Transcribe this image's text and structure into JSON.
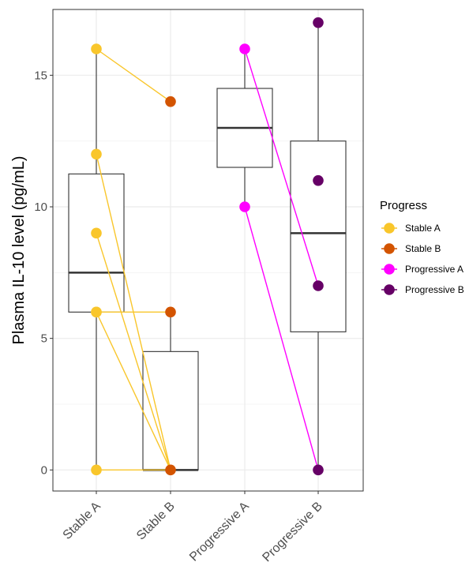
{
  "chart_data": {
    "type": "boxplot",
    "title": "",
    "xlabel": "",
    "ylabel": "Plasma IL-10 level (pg/mL)",
    "ylim": [
      -0.8,
      17.5
    ],
    "yticks": [
      0,
      5,
      10,
      15
    ],
    "grid": true,
    "legend_title": "Progress",
    "legend_position": "right",
    "categories": [
      "Stable A",
      "Stable B",
      "Progressive A",
      "Progressive B"
    ],
    "colors": {
      "Stable A": "#F9C62B",
      "Stable B": "#D35400",
      "Progressive A": "#FF00FF",
      "Progressive B": "#660066"
    },
    "boxes": [
      {
        "category": "Stable A",
        "min": 0,
        "q1": 6,
        "median": 7.5,
        "q3": 11.25,
        "max": 16
      },
      {
        "category": "Stable B",
        "min": 0,
        "q1": 0,
        "median": 0,
        "q3": 4.5,
        "max": 6
      },
      {
        "category": "Progressive A",
        "min": 10,
        "q1": 11.5,
        "median": 13,
        "q3": 14.5,
        "max": 16
      },
      {
        "category": "Progressive B",
        "min": 0,
        "q1": 5.25,
        "median": 9,
        "q3": 12.5,
        "max": 17
      }
    ],
    "points": [
      {
        "category": "Stable A",
        "y": 16
      },
      {
        "category": "Stable A",
        "y": 12
      },
      {
        "category": "Stable A",
        "y": 9
      },
      {
        "category": "Stable A",
        "y": 6
      },
      {
        "category": "Stable A",
        "y": 6
      },
      {
        "category": "Stable A",
        "y": 0
      },
      {
        "category": "Stable B",
        "y": 14
      },
      {
        "category": "Stable B",
        "y": 6
      },
      {
        "category": "Stable B",
        "y": 0
      },
      {
        "category": "Progressive A",
        "y": 16
      },
      {
        "category": "Progressive A",
        "y": 10
      },
      {
        "category": "Progressive B",
        "y": 17
      },
      {
        "category": "Progressive B",
        "y": 11
      },
      {
        "category": "Progressive B",
        "y": 7
      },
      {
        "category": "Progressive B",
        "y": 0
      }
    ],
    "pairs": [
      {
        "from": "Stable A",
        "to": "Stable B",
        "y1": 16,
        "y2": 14,
        "color": "#F9C62B"
      },
      {
        "from": "Stable A",
        "to": "Stable B",
        "y1": 12,
        "y2": 0,
        "color": "#F9C62B"
      },
      {
        "from": "Stable A",
        "to": "Stable B",
        "y1": 9,
        "y2": 0,
        "color": "#F9C62B"
      },
      {
        "from": "Stable A",
        "to": "Stable B",
        "y1": 6,
        "y2": 6,
        "color": "#F9C62B"
      },
      {
        "from": "Stable A",
        "to": "Stable B",
        "y1": 6,
        "y2": 0,
        "color": "#F9C62B"
      },
      {
        "from": "Stable A",
        "to": "Stable B",
        "y1": 0,
        "y2": 0,
        "color": "#F9C62B"
      },
      {
        "from": "Progressive A",
        "to": "Progressive B",
        "y1": 16,
        "y2": 7,
        "color": "#FF00FF"
      },
      {
        "from": "Progressive A",
        "to": "Progressive B",
        "y1": 10,
        "y2": 0,
        "color": "#FF00FF"
      }
    ]
  }
}
